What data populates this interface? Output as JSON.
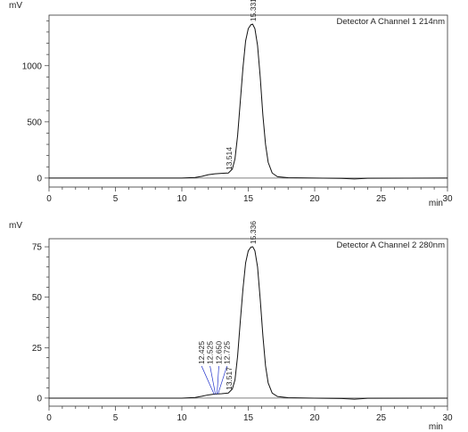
{
  "chart_data": [
    {
      "type": "line",
      "ylabel": "mV",
      "xlabel": "min",
      "legend": "Detector A Channel 1 214nm",
      "xlim": [
        0,
        30
      ],
      "ylim": [
        -80,
        1450
      ],
      "xticks": [
        0,
        5,
        10,
        15,
        20,
        25,
        30
      ],
      "yticks": [
        0,
        500,
        1000
      ],
      "peaks": [
        {
          "time": 13.514,
          "label": "13.514"
        },
        {
          "time": 15.331,
          "label": "15.331",
          "height": 1370
        }
      ],
      "series": [
        {
          "x": [
            0,
            10,
            11.0,
            11.5,
            12.0,
            12.5,
            13.0,
            13.5,
            13.8,
            14.0,
            14.2,
            14.4,
            14.6,
            14.8,
            15.0,
            15.2,
            15.33,
            15.5,
            15.7,
            15.9,
            16.1,
            16.3,
            16.5,
            16.8,
            17.2,
            18,
            20,
            22,
            23,
            24,
            30
          ],
          "y": [
            0,
            0,
            5,
            15,
            30,
            38,
            42,
            45,
            80,
            170,
            380,
            680,
            980,
            1220,
            1330,
            1365,
            1370,
            1330,
            1180,
            900,
            560,
            300,
            140,
            45,
            12,
            3,
            0,
            -3,
            -8,
            -2,
            0
          ]
        }
      ]
    },
    {
      "type": "line",
      "ylabel": "mV",
      "xlabel": "min",
      "legend": "Detector A Channel 2 280nm",
      "xlim": [
        0,
        30
      ],
      "ylim": [
        -4,
        79
      ],
      "xticks": [
        0,
        5,
        10,
        15,
        20,
        25,
        30
      ],
      "yticks": [
        0,
        25,
        50,
        75
      ],
      "peaks": [
        {
          "time": 12.425,
          "label": "12.425"
        },
        {
          "time": 12.525,
          "label": "12.525"
        },
        {
          "time": 12.65,
          "label": "12.650"
        },
        {
          "time": 12.725,
          "label": "12.725"
        },
        {
          "time": 13.517,
          "label": "13.517"
        },
        {
          "time": 15.336,
          "label": "15.336",
          "height": 75
        }
      ],
      "series": [
        {
          "x": [
            0,
            10,
            11.0,
            11.5,
            12.0,
            12.5,
            13.0,
            13.5,
            13.8,
            14.0,
            14.2,
            14.4,
            14.6,
            14.8,
            15.0,
            15.2,
            15.34,
            15.5,
            15.7,
            15.9,
            16.1,
            16.3,
            16.5,
            16.8,
            17.2,
            18,
            20,
            22,
            23,
            24,
            30
          ],
          "y": [
            0,
            0,
            0.3,
            0.9,
            1.6,
            2.0,
            2.2,
            2.5,
            4.5,
            9,
            21,
            38,
            54,
            67,
            73,
            74.8,
            75,
            73,
            65,
            49,
            31,
            16,
            7.5,
            2.5,
            0.8,
            0.2,
            0,
            -0.2,
            -0.5,
            -0.1,
            0
          ]
        }
      ]
    }
  ]
}
